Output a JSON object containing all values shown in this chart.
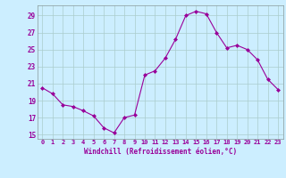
{
  "x": [
    0,
    1,
    2,
    3,
    4,
    5,
    6,
    7,
    8,
    9,
    10,
    11,
    12,
    13,
    14,
    15,
    16,
    17,
    18,
    19,
    20,
    21,
    22,
    23
  ],
  "y": [
    20.5,
    19.8,
    18.5,
    18.3,
    17.8,
    17.2,
    15.8,
    15.2,
    17.0,
    17.3,
    22.0,
    22.5,
    24.0,
    26.2,
    29.0,
    29.5,
    29.2,
    27.0,
    25.2,
    25.5,
    25.0,
    23.8,
    21.5,
    20.3
  ],
  "line_color": "#990099",
  "marker": "D",
  "marker_size": 2,
  "bg_color": "#cceeff",
  "grid_color": "#aacccc",
  "yticks": [
    15,
    17,
    19,
    21,
    23,
    25,
    27,
    29
  ],
  "xticks": [
    0,
    1,
    2,
    3,
    4,
    5,
    6,
    7,
    8,
    9,
    10,
    11,
    12,
    13,
    14,
    15,
    16,
    17,
    18,
    19,
    20,
    21,
    22,
    23
  ],
  "xlabel": "Windchill (Refroidissement éolien,°C)",
  "xlim": [
    -0.5,
    23.5
  ],
  "ylim": [
    14.5,
    30.2
  ]
}
